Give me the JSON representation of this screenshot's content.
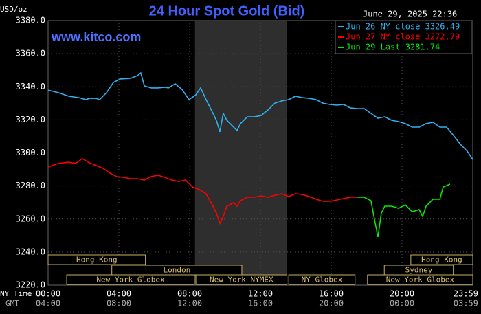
{
  "chart_data": {
    "type": "line",
    "title": "24 Hour Spot Gold (Bid)",
    "y_label": "USD/oz",
    "timestamp": "June 29, 2025 22:36",
    "watermark": "www.kitco.com",
    "x_row_labels": [
      "NY Time",
      "GMT"
    ],
    "xlim": [
      0,
      24
    ],
    "ylim": [
      3220,
      3380
    ],
    "xticks": [
      {
        "value": 0,
        "label": "00:00"
      },
      {
        "value": 4,
        "label": "04:00"
      },
      {
        "value": 8,
        "label": "08:00"
      },
      {
        "value": 12,
        "label": "12:00"
      },
      {
        "value": 16,
        "label": "16:00"
      },
      {
        "value": 20,
        "label": "20:00"
      },
      {
        "value": 24,
        "label": "23:59"
      }
    ],
    "gmt_tick_labels": [
      "04:00",
      "08:00",
      "12:00",
      "16:00",
      "20:00",
      "00:00",
      "03:59"
    ],
    "yticks": [
      {
        "value": 3220,
        "label": "3220.0"
      },
      {
        "value": 3240,
        "label": "3240.0"
      },
      {
        "value": 3260,
        "label": "3260.0"
      },
      {
        "value": 3280,
        "label": "3280.0"
      },
      {
        "value": 3300,
        "label": "3300.0"
      },
      {
        "value": 3320,
        "label": "3320.0"
      },
      {
        "value": 3340,
        "label": "3340.0"
      },
      {
        "value": 3360,
        "label": "3360.0"
      },
      {
        "value": 3380,
        "label": "3380.0"
      }
    ],
    "grid": true,
    "legend": "top-right",
    "shaded_range": [
      8.3,
      13.5
    ],
    "sessions": [
      [
        {
          "label": "Hong Kong",
          "start": 0,
          "end": 5.5
        },
        {
          "label": "Hong Kong",
          "start": 20.5,
          "end": 24
        }
      ],
      [
        {
          "label": "London",
          "start": 3.6,
          "end": 10.95
        },
        {
          "label": "Sydney",
          "start": 19.0,
          "end": 22.9
        }
      ],
      [
        {
          "label": "New York Globex",
          "start": 1.05,
          "end": 8.27
        },
        {
          "label": "New York NYMEX",
          "start": 8.35,
          "end": 13.5
        },
        {
          "label": "NY Globex",
          "start": 13.6,
          "end": 17.35
        },
        {
          "label": "New York Globex",
          "start": 18.05,
          "end": 24
        }
      ]
    ],
    "series": [
      {
        "name": "Jun 26 NY close 3326.49",
        "color": "#30b0f0",
        "x": [
          0,
          0.58,
          1.17,
          1.75,
          2.14,
          2.33,
          2.72,
          2.91,
          3.3,
          3.69,
          4.08,
          4.66,
          5.05,
          5.24,
          5.44,
          5.83,
          6.21,
          6.6,
          6.8,
          7.18,
          7.57,
          7.96,
          8.35,
          8.62,
          8.93,
          9.32,
          9.51,
          9.71,
          9.9,
          10.1,
          10.49,
          10.68,
          10.87,
          11.26,
          11.65,
          12.04,
          12.43,
          12.82,
          13.2,
          13.59,
          13.98,
          14.37,
          14.76,
          15.15,
          15.53,
          15.92,
          16.31,
          16.7,
          17.09,
          17.48,
          17.86,
          18.25,
          18.64,
          19.03,
          19.42,
          19.81,
          20.19,
          20.58,
          20.97,
          21.36,
          21.75,
          22.14,
          22.52,
          22.91,
          23.3,
          23.69,
          24
        ],
        "values": [
          3338.0,
          3336.4,
          3334.3,
          3333.4,
          3332.2,
          3333.0,
          3333.0,
          3332.2,
          3336.4,
          3342.6,
          3344.7,
          3345.1,
          3346.7,
          3348.4,
          3340.5,
          3339.3,
          3339.3,
          3339.7,
          3339.3,
          3341.8,
          3338.4,
          3332.2,
          3335.1,
          3339.3,
          3332.2,
          3323.9,
          3319.7,
          3312.7,
          3323.9,
          3319.7,
          3315.6,
          3313.5,
          3317.7,
          3321.8,
          3321.8,
          3322.6,
          3326.0,
          3330.1,
          3331.4,
          3332.2,
          3334.3,
          3333.4,
          3333.0,
          3332.2,
          3330.1,
          3329.3,
          3328.9,
          3329.3,
          3327.2,
          3326.8,
          3326.8,
          3323.9,
          3321.0,
          3321.8,
          3319.7,
          3318.9,
          3317.7,
          3315.6,
          3315.6,
          3317.7,
          3318.5,
          3315.6,
          3315.6,
          3310.6,
          3305.2,
          3301.0,
          3296.0
        ]
      },
      {
        "name": "Jun 27 NY close 3272.79",
        "color": "#ff0000",
        "x": [
          0,
          0.58,
          1.17,
          1.55,
          1.94,
          2.33,
          2.72,
          3.11,
          3.5,
          3.88,
          4.27,
          4.66,
          5.05,
          5.44,
          5.83,
          6.21,
          6.6,
          6.99,
          7.38,
          7.77,
          8.16,
          8.54,
          8.93,
          9.32,
          9.51,
          9.71,
          9.9,
          10.1,
          10.49,
          10.68,
          10.87,
          11.26,
          11.65,
          12.04,
          12.43,
          12.82,
          13.2,
          13.59,
          13.98,
          14.37,
          14.76,
          15.15,
          15.53,
          15.92,
          16.31,
          16.7,
          17.09,
          17.48
        ],
        "values": [
          3291.5,
          3293.6,
          3294.4,
          3293.6,
          3296.5,
          3294.0,
          3292.3,
          3290.6,
          3287.7,
          3285.7,
          3285.2,
          3284.4,
          3284.4,
          3283.6,
          3285.7,
          3286.5,
          3285.2,
          3283.6,
          3282.7,
          3283.6,
          3279.4,
          3277.8,
          3275.3,
          3267.8,
          3263.6,
          3257.4,
          3261.5,
          3267.8,
          3269.9,
          3267.8,
          3271.1,
          3273.2,
          3273.2,
          3274.0,
          3273.2,
          3274.4,
          3275.3,
          3273.6,
          3275.3,
          3274.8,
          3273.6,
          3272.0,
          3270.7,
          3270.7,
          3271.5,
          3272.4,
          3273.2,
          3273.2
        ]
      },
      {
        "name": "Jun 29 Last 3281.74",
        "color": "#00ee00",
        "x": [
          17.48,
          17.86,
          18.25,
          18.45,
          18.64,
          18.83,
          19.03,
          19.42,
          19.81,
          20.19,
          20.58,
          20.97,
          21.17,
          21.36,
          21.75,
          22.14,
          22.33,
          22.52,
          22.72
        ],
        "values": [
          3273.2,
          3273.2,
          3271.1,
          3259.5,
          3249.1,
          3263.6,
          3267.8,
          3267.8,
          3266.5,
          3268.6,
          3264.4,
          3265.7,
          3261.5,
          3267.8,
          3272.0,
          3272.0,
          3279.4,
          3280.2,
          3281.1
        ]
      }
    ]
  }
}
